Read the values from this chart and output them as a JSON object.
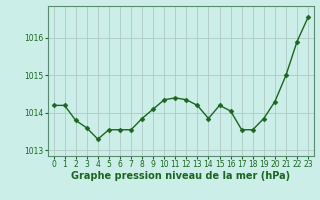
{
  "x": [
    0,
    1,
    2,
    3,
    4,
    5,
    6,
    7,
    8,
    9,
    10,
    11,
    12,
    13,
    14,
    15,
    16,
    17,
    18,
    19,
    20,
    21,
    22,
    23
  ],
  "y": [
    1014.2,
    1014.2,
    1013.8,
    1013.6,
    1013.3,
    1013.55,
    1013.55,
    1013.55,
    1013.85,
    1014.1,
    1014.35,
    1014.4,
    1014.35,
    1014.2,
    1013.85,
    1014.2,
    1014.05,
    1013.55,
    1013.55,
    1013.85,
    1014.3,
    1015.0,
    1015.9,
    1016.55
  ],
  "line_color": "#1a6620",
  "marker": "D",
  "marker_size": 2.5,
  "bg_color": "#cceee8",
  "plot_bg_color": "#cceee8",
  "grid_color": "#b0c8c4",
  "xlabel": "Graphe pression niveau de la mer (hPa)",
  "xlabel_fontsize": 7,
  "xlabel_color": "#1a6620",
  "tick_color": "#1a6620",
  "tick_fontsize": 5.5,
  "ylim": [
    1012.85,
    1016.85
  ],
  "yticks": [
    1013,
    1014,
    1015,
    1016
  ],
  "xlim": [
    -0.5,
    23.5
  ],
  "xticks": [
    0,
    1,
    2,
    3,
    4,
    5,
    6,
    7,
    8,
    9,
    10,
    11,
    12,
    13,
    14,
    15,
    16,
    17,
    18,
    19,
    20,
    21,
    22,
    23
  ],
  "line_width": 1.0,
  "spine_color": "#5a8a70"
}
